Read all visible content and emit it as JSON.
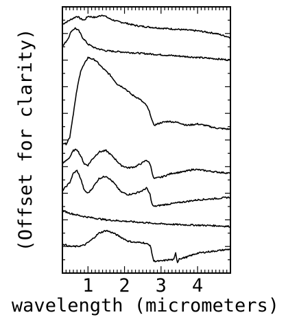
{
  "chart_data": {
    "type": "line",
    "title": "",
    "xlabel": "wavelength  (micrometers)",
    "ylabel": "(Offset for clarity)",
    "xlim": [
      0.3,
      4.9
    ],
    "ylim": [
      0,
      10
    ],
    "x_ticks": [
      1,
      2,
      3,
      4
    ],
    "x_tick_labels": [
      "1",
      "2",
      "3",
      "4"
    ],
    "y_tick_labels": [],
    "grid": false,
    "legend": "none",
    "color": "#000000",
    "series": [
      {
        "x": [
          0.3,
          0.5,
          0.7,
          0.8,
          0.9,
          1.0,
          1.2,
          1.4,
          1.6,
          1.8,
          2.0,
          2.3,
          2.6,
          3.0,
          3.5,
          4.0,
          4.5,
          4.9
        ],
        "y": [
          9.35,
          9.5,
          9.65,
          9.55,
          9.5,
          9.65,
          9.6,
          9.7,
          9.55,
          9.45,
          9.4,
          9.3,
          9.25,
          9.2,
          9.15,
          9.1,
          9.0,
          8.85
        ]
      },
      {
        "x": [
          0.3,
          0.45,
          0.55,
          0.65,
          0.75,
          0.85,
          1.0,
          1.2,
          1.5,
          2.0,
          2.5,
          3.0,
          3.5,
          4.0,
          4.5,
          4.9
        ],
        "y": [
          8.5,
          8.8,
          9.1,
          9.2,
          9.1,
          8.85,
          8.6,
          8.45,
          8.35,
          8.3,
          8.25,
          8.2,
          8.15,
          8.1,
          8.05,
          8.0
        ]
      },
      {
        "x": [
          0.3,
          0.4,
          0.5,
          0.6,
          0.7,
          0.8,
          1.0,
          1.2,
          1.4,
          1.6,
          1.8,
          2.0,
          2.2,
          2.4,
          2.6,
          2.7,
          2.75,
          2.8,
          3.0,
          3.2,
          3.5,
          3.7,
          4.0,
          4.2,
          4.5,
          4.9
        ],
        "y": [
          4.9,
          4.85,
          5.1,
          6.0,
          6.9,
          7.6,
          8.1,
          8.0,
          7.7,
          7.45,
          7.1,
          6.95,
          6.7,
          6.55,
          6.3,
          6.0,
          5.75,
          5.55,
          5.65,
          5.7,
          5.65,
          5.55,
          5.6,
          5.55,
          5.45,
          5.4
        ]
      },
      {
        "x": [
          0.3,
          0.5,
          0.6,
          0.7,
          0.8,
          0.9,
          1.0,
          1.1,
          1.3,
          1.5,
          1.7,
          1.9,
          2.1,
          2.3,
          2.5,
          2.6,
          2.7,
          2.8,
          3.0,
          3.3,
          3.6,
          3.9,
          4.2,
          4.5,
          4.9
        ],
        "y": [
          4.1,
          4.35,
          4.6,
          4.65,
          4.4,
          4.1,
          4.05,
          4.25,
          4.55,
          4.6,
          4.35,
          4.05,
          3.95,
          4.0,
          4.15,
          4.25,
          4.1,
          3.55,
          3.6,
          3.75,
          3.8,
          3.9,
          3.85,
          3.8,
          3.75
        ]
      },
      {
        "x": [
          0.3,
          0.5,
          0.6,
          0.7,
          0.8,
          0.9,
          1.0,
          1.1,
          1.3,
          1.5,
          1.7,
          1.9,
          2.1,
          2.3,
          2.5,
          2.6,
          2.7,
          2.75,
          2.8,
          3.0,
          3.5,
          4.0,
          4.5,
          4.9
        ],
        "y": [
          3.1,
          3.4,
          3.75,
          3.85,
          3.55,
          3.1,
          3.0,
          3.15,
          3.55,
          3.65,
          3.4,
          3.05,
          2.95,
          3.0,
          3.1,
          3.2,
          2.95,
          2.6,
          2.5,
          2.55,
          2.65,
          2.75,
          2.8,
          2.85
        ]
      },
      {
        "x": [
          0.3,
          0.5,
          0.8,
          1.0,
          1.5,
          2.0,
          2.5,
          3.0,
          3.5,
          4.0,
          4.5,
          4.9
        ],
        "y": [
          2.35,
          2.25,
          2.15,
          2.1,
          2.0,
          1.95,
          1.9,
          1.85,
          1.82,
          1.8,
          1.78,
          1.75
        ]
      },
      {
        "x": [
          0.3,
          0.5,
          0.7,
          0.9,
          1.1,
          1.3,
          1.5,
          1.7,
          1.9,
          2.1,
          2.3,
          2.5,
          2.6,
          2.7,
          2.75,
          2.8,
          3.0,
          3.2,
          3.35,
          3.4,
          3.45,
          3.5,
          3.55,
          3.7,
          4.0,
          4.3,
          4.6,
          4.9
        ],
        "y": [
          1.1,
          1.0,
          1.0,
          1.05,
          1.25,
          1.5,
          1.6,
          1.5,
          1.35,
          1.2,
          1.15,
          1.15,
          1.1,
          1.05,
          0.75,
          0.45,
          0.45,
          0.5,
          0.5,
          0.75,
          0.4,
          0.55,
          0.55,
          0.6,
          0.75,
          0.8,
          0.85,
          0.9
        ]
      }
    ]
  }
}
